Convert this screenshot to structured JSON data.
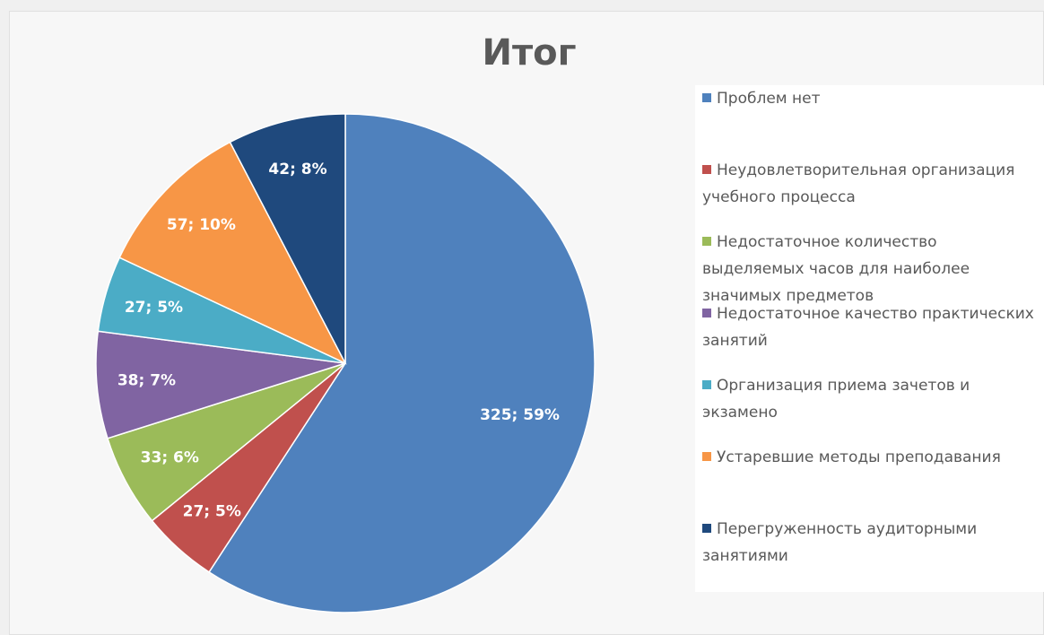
{
  "chart_data": {
    "type": "pie",
    "title": "Итог",
    "categories": [
      "Проблем нет",
      "Неудовлетворительная организация учебного процесса",
      "Недостаточное количество выделяемых часов для наиболее значимых предметов",
      "Недостаточное качество практических занятий",
      "Организация приема зачетов и экзамено",
      "Устаревшие методы преподавания",
      "Перегруженность аудиторными занятиями"
    ],
    "values": [
      325,
      27,
      33,
      38,
      27,
      57,
      42
    ],
    "value_labels": [
      "325; 59%",
      "27; 5%",
      "33; 6%",
      "38; 7%",
      "27; 5%",
      "57; 10%",
      "42; 8%"
    ],
    "colors": [
      "#4f81bd",
      "#c0504d",
      "#9bbb59",
      "#8064a2",
      "#4bacc6",
      "#f79646",
      "#1f497d"
    ],
    "legend": "right"
  }
}
